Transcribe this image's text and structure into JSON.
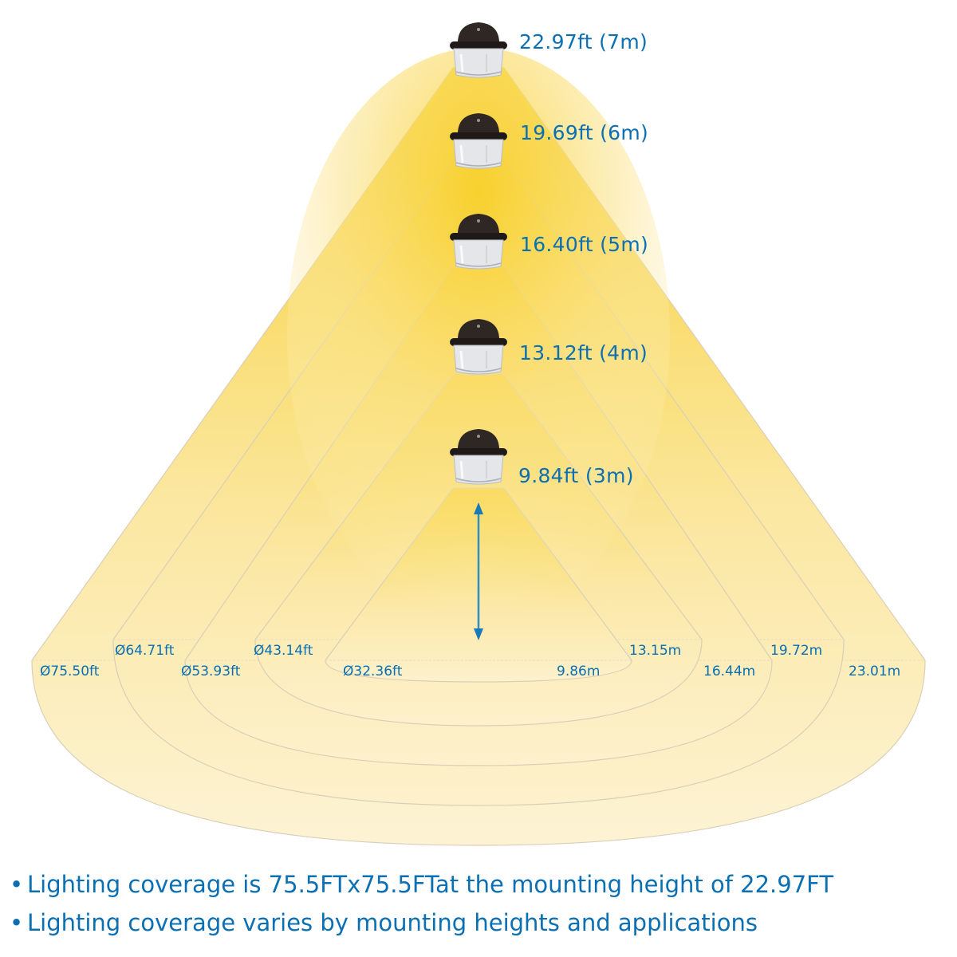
{
  "colors": {
    "label_blue": "#0a6fb3",
    "beam_yellow_strong": "#f7cf2e",
    "beam_yellow_light": "#fdf3cf",
    "outline": "#d9cfb8",
    "fixture_dome": "#2e2724",
    "fixture_lens": "#e4e6ea",
    "arrow": "#2f8fc2"
  },
  "fixtures": [
    {
      "height_label": "22.97ft (7m)",
      "meters": 7
    },
    {
      "height_label": "19.69ft (6m)",
      "meters": 6
    },
    {
      "height_label": "16.40ft (5m)",
      "meters": 5
    },
    {
      "height_label": "13.12ft (4m)",
      "meters": 4
    },
    {
      "height_label": "9.84ft (3m)",
      "meters": 3
    }
  ],
  "diameters": {
    "ft": [
      "Ø75.50ft",
      "Ø64.71ft",
      "Ø53.93ft",
      "Ø43.14ft",
      "Ø32.36ft"
    ],
    "m": [
      "23.01m",
      "19.72m",
      "16.44m",
      "13.15m",
      "9.86m"
    ]
  },
  "notes": [
    "Lighting coverage is 75.5FTx75.5FTat the mounting height of 22.97FT",
    "Lighting coverage varies by mounting heights and applications"
  ],
  "icons": {
    "fixture": "canopy-light-icon",
    "arrow": "vertical-double-arrow-icon",
    "bullet": "•"
  }
}
